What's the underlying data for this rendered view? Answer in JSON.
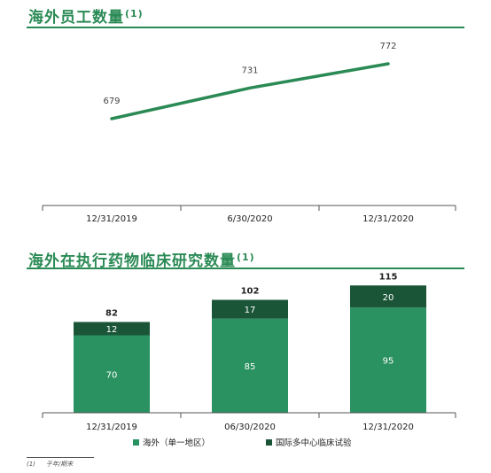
{
  "section1": {
    "title": "海外员工数量",
    "note_ref": "(1)"
  },
  "section2": {
    "title": "海外在执行药物临床研究数量",
    "note_ref": "(1)"
  },
  "colors": {
    "accent": "#2a8a55",
    "overseas_single": "#2a9160",
    "multi_center": "#1b5538"
  },
  "chart_data": [
    {
      "type": "line",
      "categories": [
        "12/31/2019",
        "6/30/2020",
        "12/31/2020"
      ],
      "series": [
        {
          "values": [
            679,
            731,
            772
          ]
        }
      ]
    },
    {
      "type": "bar",
      "stacked": true,
      "categories": [
        "12/31/2019",
        "06/30/2020",
        "12/31/2020"
      ],
      "series": [
        {
          "name": "海外（单一地区）",
          "values": [
            70,
            85,
            95
          ]
        },
        {
          "name": "国际多中心临床试验",
          "values": [
            12,
            17,
            20
          ]
        }
      ],
      "totals": [
        82,
        102,
        115
      ],
      "legend": "bottom"
    }
  ],
  "footnote": {
    "num": "(1)",
    "text": "于年/期末"
  }
}
